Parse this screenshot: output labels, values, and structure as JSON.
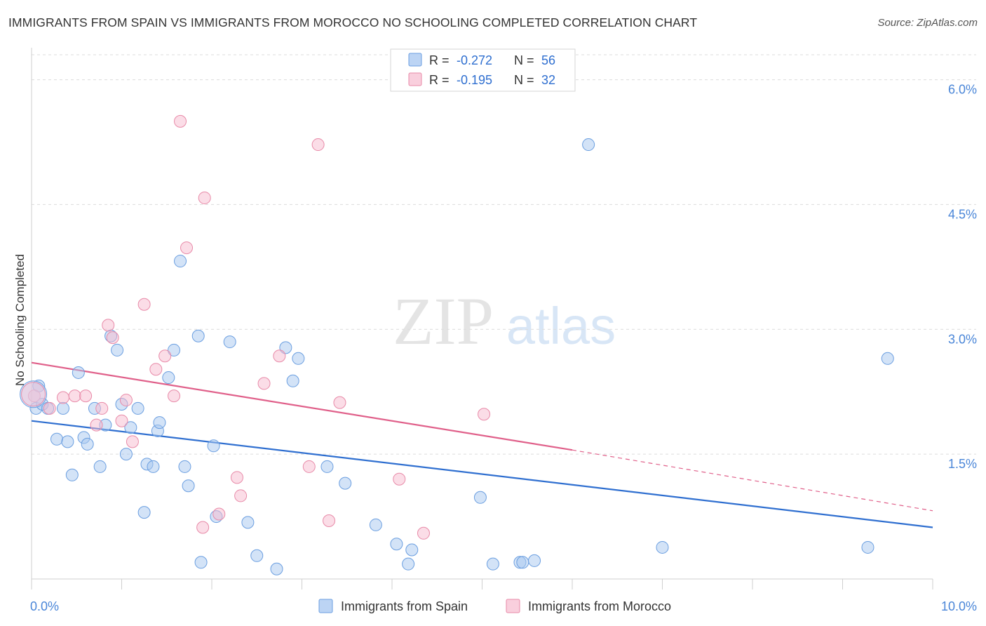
{
  "chart_title": "IMMIGRANTS FROM SPAIN VS IMMIGRANTS FROM MOROCCO NO SCHOOLING COMPLETED CORRELATION CHART",
  "source": "Source: ZipAtlas.com",
  "watermark": {
    "zip": "ZIP",
    "atlas": "atlas"
  },
  "stats_legend": [
    {
      "r_label": "R =",
      "r_value": "-0.272",
      "n_label": "N =",
      "n_value": "56"
    },
    {
      "r_label": "R =",
      "r_value": "-0.195",
      "n_label": "N =",
      "n_value": "32"
    }
  ],
  "chart_data": {
    "type": "scatter",
    "title": "IMMIGRANTS FROM SPAIN VS IMMIGRANTS FROM MOROCCO NO SCHOOLING COMPLETED CORRELATION CHART",
    "xlabel": "",
    "ylabel": "No Schooling Completed",
    "xlim": [
      0,
      10
    ],
    "ylim": [
      0,
      6.3
    ],
    "x_tick_labels": [
      "0.0%",
      "10.0%"
    ],
    "y_ticks": [
      1.5,
      3.0,
      4.5,
      6.0
    ],
    "y_tick_labels": [
      "1.5%",
      "3.0%",
      "4.5%",
      "6.0%"
    ],
    "grid": true,
    "legend_position": "bottom-center",
    "series": [
      {
        "name": "Immigrants from Spain",
        "color": "#a8c8f0",
        "stroke": "#6a9ee0",
        "trend": {
          "x0": 0,
          "y0": 1.9,
          "x1": 10,
          "y1": 0.62,
          "color": "#2f6fd0"
        },
        "points": [
          [
            0.05,
            2.05
          ],
          [
            0.08,
            2.32
          ],
          [
            0.12,
            2.1
          ],
          [
            0.18,
            2.05
          ],
          [
            0.28,
            1.68
          ],
          [
            0.35,
            2.05
          ],
          [
            0.4,
            1.65
          ],
          [
            0.45,
            1.25
          ],
          [
            0.52,
            2.48
          ],
          [
            0.58,
            1.7
          ],
          [
            0.62,
            1.62
          ],
          [
            0.7,
            2.05
          ],
          [
            0.76,
            1.35
          ],
          [
            0.82,
            1.85
          ],
          [
            0.88,
            2.92
          ],
          [
            0.95,
            2.75
          ],
          [
            1.0,
            2.1
          ],
          [
            1.05,
            1.5
          ],
          [
            1.1,
            1.82
          ],
          [
            1.18,
            2.05
          ],
          [
            1.25,
            0.8
          ],
          [
            1.28,
            1.38
          ],
          [
            1.35,
            1.35
          ],
          [
            1.4,
            1.78
          ],
          [
            1.42,
            1.88
          ],
          [
            1.52,
            2.42
          ],
          [
            1.58,
            2.75
          ],
          [
            1.65,
            3.82
          ],
          [
            1.7,
            1.35
          ],
          [
            1.74,
            1.12
          ],
          [
            1.85,
            2.92
          ],
          [
            1.88,
            0.2
          ],
          [
            2.02,
            1.6
          ],
          [
            2.05,
            0.75
          ],
          [
            2.2,
            2.85
          ],
          [
            2.4,
            0.68
          ],
          [
            2.5,
            0.28
          ],
          [
            2.72,
            0.12
          ],
          [
            2.82,
            2.78
          ],
          [
            2.9,
            2.38
          ],
          [
            2.96,
            2.65
          ],
          [
            3.28,
            1.35
          ],
          [
            3.48,
            1.15
          ],
          [
            3.82,
            0.65
          ],
          [
            4.05,
            0.42
          ],
          [
            4.18,
            0.18
          ],
          [
            4.22,
            0.35
          ],
          [
            4.98,
            0.98
          ],
          [
            5.12,
            0.18
          ],
          [
            5.42,
            0.2
          ],
          [
            5.45,
            0.2
          ],
          [
            5.58,
            0.22
          ],
          [
            6.18,
            5.22
          ],
          [
            7.0,
            0.38
          ],
          [
            9.28,
            0.38
          ],
          [
            9.5,
            2.65
          ]
        ]
      },
      {
        "name": "Immigrants from Morocco",
        "color": "#f7bcd0",
        "stroke": "#e88aa8",
        "trend": {
          "x0": 0,
          "y0": 2.6,
          "x1": 6.0,
          "y1": 1.55,
          "color": "#e0608a",
          "dashed_to": {
            "x": 10,
            "y": 0.82
          }
        },
        "points": [
          [
            0.03,
            2.2
          ],
          [
            0.2,
            2.05
          ],
          [
            0.35,
            2.18
          ],
          [
            0.48,
            2.2
          ],
          [
            0.6,
            2.2
          ],
          [
            0.72,
            1.85
          ],
          [
            0.78,
            2.05
          ],
          [
            0.85,
            3.05
          ],
          [
            0.9,
            2.9
          ],
          [
            1.0,
            1.9
          ],
          [
            1.05,
            2.15
          ],
          [
            1.12,
            1.65
          ],
          [
            1.25,
            3.3
          ],
          [
            1.38,
            2.52
          ],
          [
            1.48,
            2.68
          ],
          [
            1.58,
            2.2
          ],
          [
            1.65,
            5.5
          ],
          [
            1.72,
            3.98
          ],
          [
            1.9,
            0.62
          ],
          [
            1.92,
            4.58
          ],
          [
            2.08,
            0.78
          ],
          [
            2.28,
            1.22
          ],
          [
            2.32,
            1.0
          ],
          [
            2.58,
            2.35
          ],
          [
            2.75,
            2.68
          ],
          [
            3.08,
            1.35
          ],
          [
            3.18,
            5.22
          ],
          [
            3.3,
            0.7
          ],
          [
            3.42,
            2.12
          ],
          [
            4.08,
            1.2
          ],
          [
            4.35,
            0.55
          ],
          [
            5.02,
            1.98
          ]
        ]
      }
    ]
  }
}
